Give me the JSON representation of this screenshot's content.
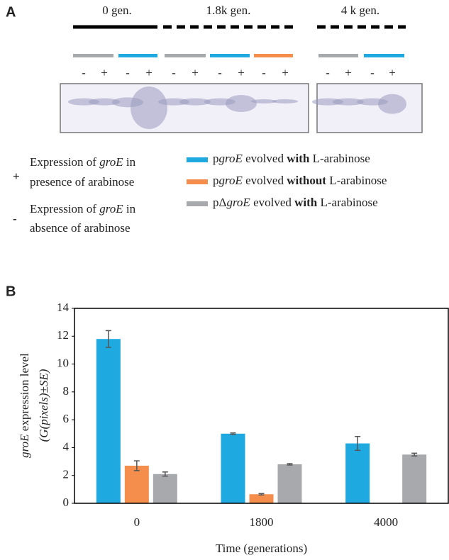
{
  "panel_a": {
    "label": "A",
    "generations": [
      "0 gen.",
      "1.8k gen.",
      "4 k gen."
    ],
    "lanes": [
      "-",
      "+",
      "-",
      "+",
      "-",
      "+",
      "-",
      "+",
      "-",
      "+",
      "-",
      "+",
      "-",
      "+"
    ],
    "signs": [
      {
        "sign": "+",
        "lines": [
          [
            "Expression of ",
            "groE",
            " in"
          ],
          [
            "presence of arabinose"
          ]
        ]
      },
      {
        "sign": "-",
        "lines": [
          [
            "Expression of ",
            "groE",
            " in"
          ],
          [
            "absence of arabinose"
          ]
        ]
      }
    ],
    "legend": [
      [
        "p",
        "groE",
        " evolved ",
        "with",
        " L-arabinose"
      ],
      [
        "p",
        "groE",
        " evolved ",
        "without",
        " L-arabinose"
      ],
      [
        "pΔ",
        "groE",
        " evolved ",
        "with",
        " L-arabinose"
      ]
    ]
  },
  "chart_data": {
    "type": "bar",
    "panel_label": "B",
    "ylabel_lines": [
      [
        "groE",
        " expression level"
      ],
      [
        "(G(pixels)±SE)"
      ]
    ],
    "xlabel": "Time (generations)",
    "categories": [
      "0",
      "1800",
      "4000"
    ],
    "series": [
      {
        "color": "#1fa9e1",
        "values": [
          11.8,
          5.0,
          4.3
        ],
        "errors": [
          0.6,
          0.05,
          0.5
        ]
      },
      {
        "color": "#f58d4c",
        "values": [
          2.7,
          0.65,
          null
        ],
        "errors": [
          0.35,
          0.05,
          null
        ]
      },
      {
        "color": "#a8a9ad",
        "values": [
          2.1,
          2.8,
          3.5
        ],
        "errors": [
          0.15,
          0.05,
          0.1
        ]
      }
    ],
    "ylim": [
      0,
      14
    ],
    "yticks": [
      0,
      2,
      4,
      6,
      8,
      10,
      12,
      14
    ]
  }
}
